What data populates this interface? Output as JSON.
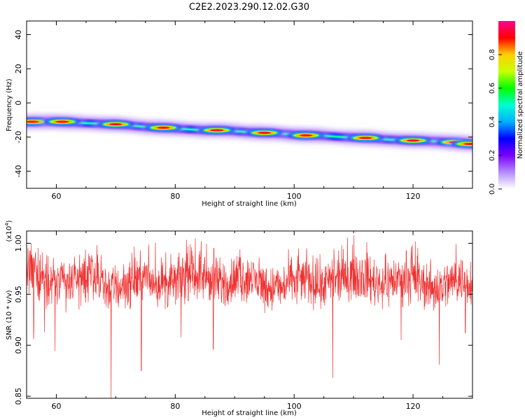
{
  "figure": {
    "title": "C2E2.2023.290.12.02.G30"
  },
  "chart_data": [
    {
      "type": "heatmap",
      "xlabel": "Height of straight line (km)",
      "ylabel": "Frequency (Hz)",
      "xlim": [
        55,
        130
      ],
      "ylim": [
        -50,
        48
      ],
      "xticks": [
        60,
        80,
        100,
        120
      ],
      "yticks": [
        -40,
        -20,
        0,
        20,
        40
      ],
      "colorbar": {
        "label": "Normalized spectral amplitude",
        "range": [
          0,
          1
        ],
        "ticks": [
          0.0,
          0.2,
          0.4,
          0.6,
          0.8
        ],
        "tick_labels": [
          "0.0",
          "0.2",
          "0.4",
          "0.6",
          "0.8"
        ],
        "colors": [
          "#ffffff",
          "#b38cff",
          "#7a00ff",
          "#0000ff",
          "#00b0ff",
          "#00ffd0",
          "#00ff00",
          "#c8ff00",
          "#ffd000",
          "#ff0000",
          "#ff0090"
        ]
      },
      "ridge": {
        "x": [
          55,
          57,
          60,
          63,
          66,
          70,
          75,
          80,
          85,
          88,
          92,
          96,
          100,
          104,
          108,
          112,
          116,
          120,
          124,
          127,
          130
        ],
        "y": [
          -11,
          -11,
          -11,
          -11.5,
          -12,
          -12.5,
          -14,
          -15,
          -16,
          -16,
          -17,
          -17.5,
          -18.5,
          -19,
          -20,
          -20.5,
          -21.5,
          -22,
          -22.5,
          -23,
          -24
        ]
      },
      "peaks": [
        {
          "x": 56,
          "y": -11,
          "amp": 0.9
        },
        {
          "x": 61,
          "y": -11,
          "amp": 0.95
        },
        {
          "x": 70,
          "y": -12.5,
          "amp": 0.92
        },
        {
          "x": 78,
          "y": -14.5,
          "amp": 0.9
        },
        {
          "x": 87,
          "y": -16,
          "amp": 0.95
        },
        {
          "x": 95,
          "y": -17.5,
          "amp": 0.92
        },
        {
          "x": 102,
          "y": -19,
          "amp": 0.9
        },
        {
          "x": 112,
          "y": -20.5,
          "amp": 0.92
        },
        {
          "x": 120,
          "y": -22,
          "amp": 0.88
        },
        {
          "x": 127,
          "y": -23,
          "amp": 0.85
        },
        {
          "x": 129.5,
          "y": -24,
          "amp": 0.8
        }
      ]
    },
    {
      "type": "line",
      "xlabel": "Height of straight line (km)",
      "ylabel": "SNR (10 * v/v)",
      "multiplier": "(x10",
      "multiplier_exp": "4",
      "multiplier_close": ")",
      "xlim": [
        55,
        130
      ],
      "ylim": [
        0.848,
        1.012
      ],
      "xticks": [
        60,
        80,
        100,
        120
      ],
      "yticks": [
        0.85,
        0.9,
        0.95,
        1.0
      ],
      "ytick_labels": [
        "0.85",
        "0.90",
        "0.95",
        "1.00"
      ],
      "series": [
        {
          "color": "#f03232",
          "samples": 1600,
          "mean": 0.963,
          "noise": 0.018,
          "spikes": [
            {
              "x": 56.2,
              "y": 0.905
            },
            {
              "x": 58.0,
              "y": 0.913
            },
            {
              "x": 59.8,
              "y": 0.895
            },
            {
              "x": 69.2,
              "y": 0.848
            },
            {
              "x": 74.3,
              "y": 0.875
            },
            {
              "x": 81.0,
              "y": 0.908
            },
            {
              "x": 86.4,
              "y": 0.896
            },
            {
              "x": 106.5,
              "y": 0.868
            },
            {
              "x": 118.0,
              "y": 0.905
            },
            {
              "x": 124.4,
              "y": 0.881
            },
            {
              "x": 128.8,
              "y": 0.912
            }
          ]
        }
      ]
    }
  ]
}
